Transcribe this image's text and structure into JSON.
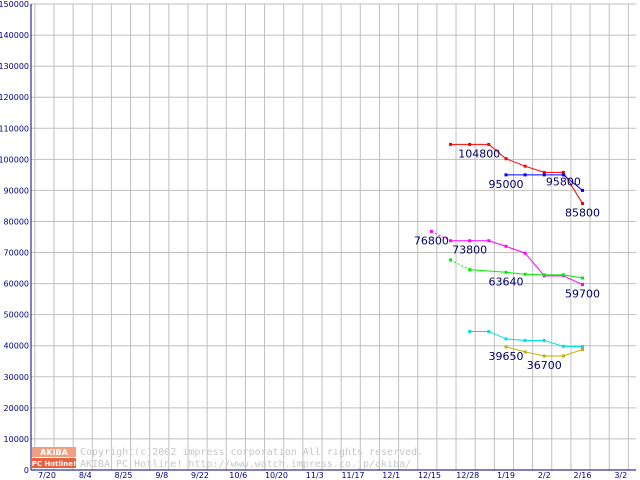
{
  "chart_data": {
    "type": "line",
    "title": "",
    "xlabel": "",
    "ylabel": "",
    "ylim": [
      0,
      150000
    ],
    "grid": true,
    "y_ticks": [
      0,
      10000,
      20000,
      30000,
      40000,
      50000,
      60000,
      70000,
      80000,
      90000,
      100000,
      110000,
      120000,
      130000,
      140000,
      150000
    ],
    "x_ticks": [
      "7/20",
      "8/4",
      "8/25",
      "9/8",
      "9/22",
      "10/6",
      "10/20",
      "11/3",
      "11/17",
      "12/1",
      "12/15",
      "12/28",
      "1/19",
      "2/2",
      "2/16",
      "3/2"
    ],
    "x_unit": "weeks since 7/20",
    "series": [
      {
        "color": "#ff0000",
        "points": [
          {
            "x": 21.1,
            "y": 104800
          },
          {
            "x": 22.1,
            "y": 104800
          },
          {
            "x": 23.1,
            "y": 104800
          },
          {
            "x": 24.0,
            "y": 100200
          },
          {
            "x": 25.0,
            "y": 97800
          },
          {
            "x": 26.0,
            "y": 95800
          },
          {
            "x": 27.0,
            "y": 95800
          },
          {
            "x": 28.0,
            "y": 85800
          }
        ],
        "dashed_until": 0
      },
      {
        "color": "#0000ff",
        "points": [
          {
            "x": 24.0,
            "y": 95000
          },
          {
            "x": 25.0,
            "y": 95000
          },
          {
            "x": 26.0,
            "y": 95000
          },
          {
            "x": 27.0,
            "y": 95000
          },
          {
            "x": 28.0,
            "y": 90000
          }
        ],
        "dashed_until": 0
      },
      {
        "color": "#ff00ff",
        "points": [
          {
            "x": 20.1,
            "y": 76800
          },
          {
            "x": 21.1,
            "y": 73800
          },
          {
            "x": 22.1,
            "y": 73800
          },
          {
            "x": 23.1,
            "y": 73800
          },
          {
            "x": 24.0,
            "y": 72000
          },
          {
            "x": 25.0,
            "y": 69800
          },
          {
            "x": 26.0,
            "y": 62500
          },
          {
            "x": 27.0,
            "y": 62500
          },
          {
            "x": 28.0,
            "y": 59700
          }
        ],
        "dashed_until": 1
      },
      {
        "color": "#00ee00",
        "points": [
          {
            "x": 21.1,
            "y": 67600
          },
          {
            "x": 22.1,
            "y": 64500
          },
          {
            "x": 24.0,
            "y": 63640
          },
          {
            "x": 25.0,
            "y": 63000
          },
          {
            "x": 26.0,
            "y": 62800
          },
          {
            "x": 27.0,
            "y": 62800
          },
          {
            "x": 28.0,
            "y": 61800
          }
        ],
        "dashed_until": 1
      },
      {
        "color": "#00e0e0",
        "points": [
          {
            "x": 22.1,
            "y": 44600
          },
          {
            "x": 23.1,
            "y": 44600
          },
          {
            "x": 24.0,
            "y": 42200
          },
          {
            "x": 25.0,
            "y": 41700
          },
          {
            "x": 26.0,
            "y": 41700
          },
          {
            "x": 27.0,
            "y": 39800
          },
          {
            "x": 28.0,
            "y": 39700
          }
        ],
        "dashed_until": 0
      },
      {
        "color": "#c0b000",
        "points": [
          {
            "x": 24.0,
            "y": 39650
          },
          {
            "x": 25.0,
            "y": 38000
          },
          {
            "x": 26.0,
            "y": 36700
          },
          {
            "x": 27.0,
            "y": 36700
          },
          {
            "x": 28.0,
            "y": 38800
          }
        ],
        "dashed_until": 0
      }
    ],
    "data_labels": [
      {
        "text": "104800",
        "x": 22.6,
        "y": 104800
      },
      {
        "text": "95800",
        "x": 27.0,
        "y": 95800
      },
      {
        "text": "95000",
        "x": 24.0,
        "y": 95000
      },
      {
        "text": "85800",
        "x": 28.0,
        "y": 85800
      },
      {
        "text": "76800",
        "x": 20.1,
        "y": 76800
      },
      {
        "text": "73800",
        "x": 22.1,
        "y": 73800
      },
      {
        "text": "63640",
        "x": 24.0,
        "y": 63640
      },
      {
        "text": "59700",
        "x": 28.0,
        "y": 59700
      },
      {
        "text": "39650",
        "x": 24.0,
        "y": 39650
      },
      {
        "text": "36700",
        "x": 26.0,
        "y": 36700
      }
    ]
  },
  "copyright": {
    "line1": "Copyright(c)2002 impress corporation All rights reserved.",
    "line2": "AKIBA PC Hotline!  http://www.watch.impress.co.jp/akiba/"
  },
  "logo": {
    "top": "AKIBA",
    "bottom": "PC Hotline!"
  },
  "colors": {
    "axis_text": "#000080",
    "grid": "#c0c0c0",
    "copyright": "#c8c8c8",
    "logo_top": "#f0a080",
    "logo_bottom": "#e86040"
  }
}
